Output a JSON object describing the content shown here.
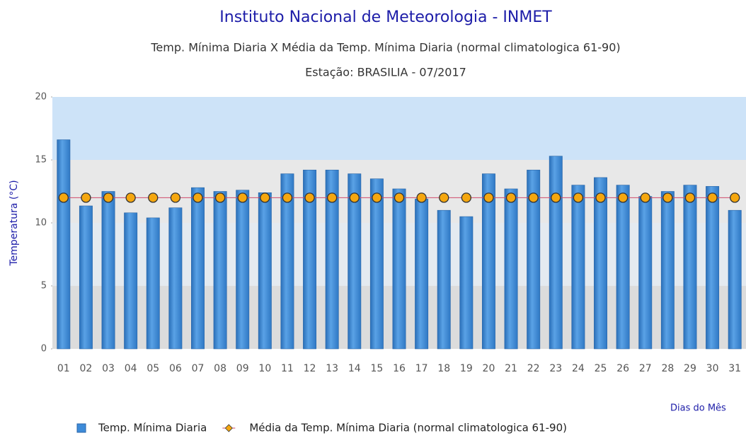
{
  "chart_data": {
    "type": "bar",
    "title": "Instituto Nacional de Meteorologia - INMET",
    "subtitle": "Temp. Mínima Diaria X Média da Temp. Mínima Diaria (normal climatologica 61-90)",
    "subtitle2": "Estação: BRASILIA - 07/2017",
    "y_label": "Temperatura (°C)",
    "x_label": "Dias do Mês",
    "categories": [
      "01",
      "02",
      "03",
      "04",
      "05",
      "06",
      "07",
      "08",
      "09",
      "10",
      "11",
      "12",
      "13",
      "14",
      "15",
      "16",
      "17",
      "18",
      "19",
      "20",
      "21",
      "22",
      "23",
      "24",
      "25",
      "26",
      "27",
      "28",
      "29",
      "30",
      "31"
    ],
    "series": [
      {
        "name": "Temp. Mínima Diaria",
        "type": "bar",
        "color": "#3d8bd9",
        "values": [
          16.6,
          11.35,
          12.5,
          10.8,
          10.4,
          11.2,
          12.8,
          12.5,
          12.6,
          12.4,
          13.9,
          14.2,
          14.2,
          13.9,
          13.5,
          12.7,
          11.9,
          11.0,
          10.5,
          13.9,
          12.7,
          14.2,
          15.3,
          13.0,
          13.6,
          13.0,
          12.1,
          12.5,
          13.0,
          12.9,
          11.0
        ]
      },
      {
        "name": "Média da Temp. Mínima Diaria (normal climatologica 61-90)",
        "type": "line",
        "color": "#f5a70f",
        "values": [
          12,
          12,
          12,
          12,
          12,
          12,
          12,
          12,
          12,
          12,
          12,
          12,
          12,
          12,
          12,
          12,
          12,
          12,
          12,
          12,
          12,
          12,
          12,
          12,
          12,
          12,
          12,
          12,
          12,
          12,
          12
        ]
      }
    ],
    "ylim": [
      0,
      20
    ],
    "yticks": [
      0,
      5,
      10,
      15,
      20
    ]
  }
}
